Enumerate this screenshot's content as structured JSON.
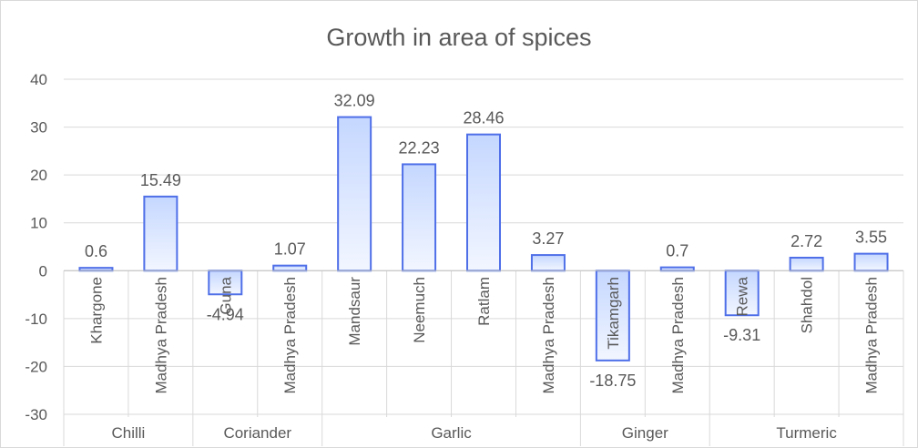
{
  "chart_data": {
    "type": "bar",
    "title": "Growth in area of spices",
    "xlabel": "",
    "ylabel": "",
    "ylim": [
      -30,
      40
    ],
    "yticks": [
      -30,
      -20,
      -10,
      0,
      10,
      20,
      30,
      40
    ],
    "grid": true,
    "legend": "none",
    "groups": [
      {
        "name": "Chilli",
        "categories": [
          "Khargone",
          "Madhya Pradesh"
        ],
        "values": [
          0.6,
          15.49
        ]
      },
      {
        "name": "Coriander",
        "categories": [
          "Guna",
          "Madhya Pradesh"
        ],
        "values": [
          -4.94,
          1.07
        ]
      },
      {
        "name": "Garlic",
        "categories": [
          "Mandsaur",
          "Neemuch",
          "Ratlam",
          "Madhya Pradesh"
        ],
        "values": [
          32.09,
          22.23,
          28.46,
          3.27
        ]
      },
      {
        "name": "Ginger",
        "categories": [
          "Tikamgarh",
          "Madhya Pradesh"
        ],
        "values": [
          -18.75,
          0.7
        ]
      },
      {
        "name": "Turmeric",
        "categories": [
          "Rewa",
          "Shahdol",
          "Madhya Pradesh"
        ],
        "values": [
          -9.31,
          2.72,
          3.55
        ]
      }
    ],
    "value_labels": [
      [
        "0.6",
        "15.49"
      ],
      [
        "-4.94",
        "1.07"
      ],
      [
        "32.09",
        "22.23",
        "28.46",
        "3.27"
      ],
      [
        "-18.75",
        "0.7"
      ],
      [
        "-9.31",
        "2.72",
        "3.55"
      ]
    ],
    "colors": {
      "bar_top": "#c5d7ff",
      "bar_bottom": "#f2f6ff",
      "bar_border": "#4f6fe8",
      "grid": "#d9d9d9",
      "text": "#595959"
    }
  }
}
